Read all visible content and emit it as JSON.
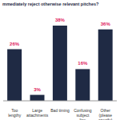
{
  "chart_data": {
    "type": "bar",
    "title": "mmediately reject otherwise relevant pitches?",
    "categories": [
      "Too lengthy",
      "Large attachments",
      "Bad timing",
      "Confusing subject line",
      "Other (please specify)"
    ],
    "values": [
      26,
      3,
      38,
      16,
      36
    ],
    "value_labels": [
      "26%",
      "3%",
      "38%",
      "16%",
      "36%"
    ],
    "color": "#1f2a44",
    "ylim": [
      0,
      42
    ],
    "data_labels": true,
    "tick_labels": "x",
    "grid": false
  }
}
